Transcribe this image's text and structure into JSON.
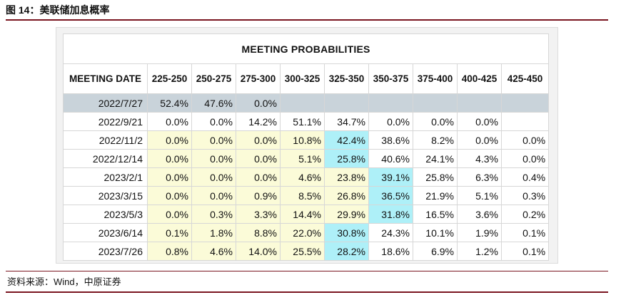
{
  "figure": {
    "title": "图 14：美联储加息概率",
    "source": "资料来源：Wind，中原证券"
  },
  "table": {
    "banner": "MEETING PROBABILITIES",
    "headers": [
      "MEETING DATE",
      "225-250",
      "250-275",
      "275-300",
      "300-325",
      "325-350",
      "350-375",
      "375-400",
      "400-425",
      "425-450"
    ],
    "rows": [
      [
        "2022/7/27",
        "52.4%",
        "47.6%",
        "0.0%",
        "",
        "",
        "",
        "",
        "",
        ""
      ],
      [
        "2022/9/21",
        "0.0%",
        "0.0%",
        "14.2%",
        "51.1%",
        "34.7%",
        "0.0%",
        "0.0%",
        "0.0%",
        ""
      ],
      [
        "2022/11/2",
        "0.0%",
        "0.0%",
        "0.0%",
        "10.8%",
        "42.4%",
        "38.6%",
        "8.2%",
        "0.0%",
        "0.0%"
      ],
      [
        "2022/12/14",
        "0.0%",
        "0.0%",
        "0.0%",
        "5.1%",
        "25.8%",
        "40.6%",
        "24.1%",
        "4.3%",
        "0.0%"
      ],
      [
        "2023/2/1",
        "0.0%",
        "0.0%",
        "0.0%",
        "4.6%",
        "23.8%",
        "39.1%",
        "25.8%",
        "6.3%",
        "0.4%"
      ],
      [
        "2023/3/15",
        "0.0%",
        "0.0%",
        "0.9%",
        "8.5%",
        "26.8%",
        "36.5%",
        "21.9%",
        "5.1%",
        "0.3%"
      ],
      [
        "2023/5/3",
        "0.0%",
        "0.3%",
        "3.3%",
        "14.4%",
        "29.9%",
        "31.8%",
        "16.5%",
        "3.6%",
        "0.2%"
      ],
      [
        "2023/6/14",
        "0.1%",
        "1.8%",
        "8.8%",
        "22.0%",
        "30.8%",
        "24.3%",
        "10.1%",
        "1.9%",
        "0.1%"
      ],
      [
        "2023/7/26",
        "0.8%",
        "4.6%",
        "14.0%",
        "25.5%",
        "28.2%",
        "18.6%",
        "6.9%",
        "1.2%",
        "0.1%"
      ]
    ],
    "highlight_col": [
      0,
      0,
      5,
      5,
      6,
      6,
      6,
      5,
      5
    ],
    "colors": {
      "summary_row": "#c9d3da",
      "prior_cells": "#fbfbd8",
      "max_cell": "#aef0f8",
      "rule": "#7a1520"
    }
  }
}
